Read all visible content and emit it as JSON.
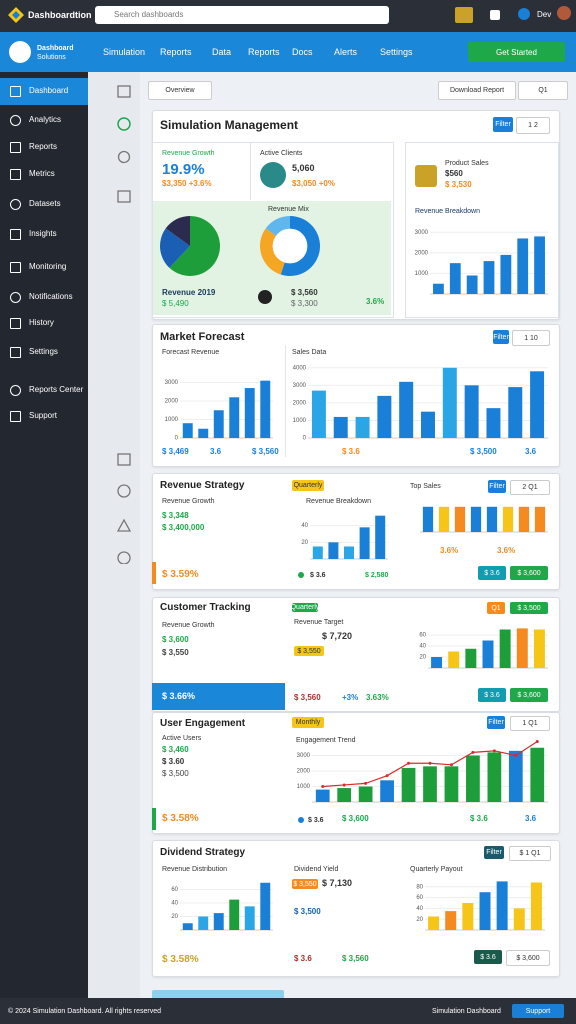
{
  "topbar": {
    "brand": "Dashboardtion",
    "search": "Search dashboards",
    "user": "Dev"
  },
  "header": {
    "app_name": "Dashboard",
    "app_sub": "Solutions",
    "nav": [
      "Simulation",
      "Reports",
      "Data",
      "Reports",
      "Docs",
      "Alerts",
      "Settings"
    ],
    "button": "Get Started"
  },
  "sidebar": [
    "Dashboard",
    "Analytics",
    "Reports",
    "Metrics",
    "Datasets",
    "Insights",
    "Monitoring",
    "Notifications",
    "History",
    "Settings",
    "Reports Center",
    "Support"
  ],
  "toolbar": {
    "filter": "Overview",
    "export": "Download Report",
    "range": "Q1"
  },
  "summary": {
    "title": "Simulation Management",
    "filter": "Filter",
    "pages": "1 2",
    "growth_label": "Revenue Growth",
    "growth": "19.9%",
    "growth_sub": "$3,350 +3.6%",
    "clients_label": "Active Clients",
    "clients": "5,060",
    "clients_sub": "$3,050 +0%",
    "mix_label": "Revenue Mix",
    "mix_legend": "Revenue 2019",
    "mix_value": "$ 5,490",
    "mix_total": "$ 3,560",
    "mix_sub": "$ 3,300",
    "mix_pct": "3.6%",
    "sales_label": "Product Sales",
    "sales": "$560",
    "sales_sub": "$ 3,530",
    "breakdown": "Revenue Breakdown"
  },
  "forecast": {
    "title": "Market Forecast",
    "left_subtitle": "Forecast Revenue",
    "right_subtitle": "Sales Data",
    "filter": "Filter",
    "pages": "1 10",
    "footer": [
      "$ 3,469",
      "3.6",
      "$ 3,560",
      "$ 3.6",
      "$ 3,500",
      "3.6"
    ]
  },
  "strategy": {
    "title": "Revenue Strategy",
    "label": "Revenue Growth",
    "value": "$ 3,348",
    "value_sub": "$ 3,400,000",
    "bottom": "$ 3.59%",
    "tag": "Quarterly",
    "chart_label": "Revenue Breakdown",
    "chart_footer": [
      "$ 3.6",
      "$ 2,580"
    ],
    "right_label": "Top Sales",
    "filter": "Filter",
    "pages": "2 Q1",
    "right_footer": [
      "3.6%",
      "3.6%"
    ],
    "btn_a": "$ 3.6",
    "btn_b": "$ 3,600"
  },
  "tracking": {
    "title": "Customer Tracking",
    "label": "Revenue Growth",
    "value": "$ 3,600",
    "value_sub": "$ 3,550",
    "tag": "Quarterly",
    "mid_label": "Revenue Target",
    "mid_value": "$ 7,720",
    "mid_tag": "$ 3,550",
    "bottom": "$ 3.66%",
    "mid_footer": [
      "$ 3,560",
      "+3%",
      "3.63%"
    ],
    "tag_a": "Q1",
    "tag_b": "$ 3,500",
    "btn_a": "$ 3.6",
    "btn_b": "$ 3,600"
  },
  "engagement": {
    "title": "User Engagement",
    "label": "Active Users",
    "value": "$ 3,460",
    "value_sub": "$ 3.60",
    "value_sub2": "$ 3,500",
    "bottom": "$ 3.58%",
    "tag": "Monthly",
    "chart_label": "Engagement Trend",
    "footer": [
      "$ 3.6",
      "$ 3,600",
      "$ 3.6",
      "3.6"
    ],
    "filter": "Filter",
    "pages": "1 Q1"
  },
  "dividend": {
    "title": "Dividend Strategy",
    "label": "Revenue Distribution",
    "tag": "$ 3,550",
    "value": "$ 7,130",
    "value_sub": "$ 3,500",
    "mid_label": "Dividend Yield",
    "bottom": "$ 3.58%",
    "mid_footer": [
      "$ 3.6",
      "$ 3,560"
    ],
    "right_label": "Quarterly Payout",
    "filter": "Filter",
    "pages": "$ 1 Q1",
    "btn_a": "$ 3.6",
    "btn_b": "$ 3,600"
  },
  "footer": {
    "left": "© 2024 Simulation Dashboard. All rights reserved",
    "right": "Simulation Dashboard",
    "button": "Support"
  },
  "chart_data": [
    {
      "type": "pie",
      "values": [
        62,
        23,
        15
      ],
      "colors": [
        "#1e9e3a",
        "#1b5fb4",
        "#2b2b4f"
      ]
    },
    {
      "type": "pie",
      "donut": true,
      "values": [
        55,
        30,
        15
      ],
      "colors": [
        "#1a7fd6",
        "#f5a623",
        "#5fb7ee"
      ]
    },
    {
      "type": "bar",
      "values": [
        500,
        1500,
        900,
        1600,
        1900,
        2700,
        2800
      ],
      "color": "#1a7fd6",
      "ylim": [
        0,
        3500
      ],
      "yticks": [
        1000,
        2000,
        3000
      ]
    },
    {
      "type": "bar",
      "values": [
        800,
        500,
        1500,
        2200,
        2700,
        3100
      ],
      "color": "#1a7fd6",
      "ylim": [
        0,
        4000
      ],
      "yticks": [
        0,
        1000,
        2000,
        3000
      ]
    },
    {
      "type": "bar",
      "values": [
        2700,
        1200,
        1200,
        2400,
        3200,
        1500,
        4000,
        3000,
        1700,
        2900,
        3800
      ],
      "colors": [
        "#2aa6e6",
        "#1a7fd6",
        "#2aa6e6",
        "#1a7fd6",
        "#1a7fd6",
        "#1a7fd6",
        "#2aa6e6",
        "#1a7fd6",
        "#1a7fd6",
        "#1a7fd6",
        "#1a7fd6"
      ],
      "ylim": [
        0,
        4500
      ],
      "yticks": [
        0,
        1000,
        2000,
        3000,
        4000
      ]
    },
    {
      "type": "bar",
      "values": [
        15,
        20,
        15,
        38,
        52
      ],
      "colors": [
        "#2aa6e6",
        "#1a7fd6",
        "#2aa6e6",
        "#1a7fd6",
        "#1a7fd6"
      ],
      "ylim": [
        0,
        60
      ],
      "yticks": [
        20,
        40
      ]
    },
    {
      "type": "bar",
      "values": [
        45,
        45,
        45,
        45,
        45,
        45,
        45,
        45
      ],
      "colors": [
        "#1a7fd6",
        "#f5c518",
        "#f58a1f",
        "#1a7fd6",
        "#1a7fd6",
        "#f5c518",
        "#f58a1f",
        "#f58a1f"
      ],
      "ylim": [
        0,
        50
      ]
    },
    {
      "type": "bar",
      "values": [
        20,
        30,
        35,
        50,
        70,
        72,
        70
      ],
      "colors": [
        "#1a7fd6",
        "#f5c518",
        "#1e9e3a",
        "#1a7fd6",
        "#1e9e3a",
        "#f58a1f",
        "#f5c518"
      ],
      "ylim": [
        0,
        80
      ],
      "yticks": [
        20,
        40,
        60
      ]
    },
    {
      "type": "combo",
      "values": [
        800,
        900,
        1000,
        1400,
        2200,
        2300,
        2300,
        3000,
        3200,
        3300,
        3500
      ],
      "colors": [
        "#1a7fd6",
        "#1e9e3a",
        "#1e9e3a",
        "#1a7fd6",
        "#1e9e3a",
        "#1e9e3a",
        "#1e9e3a",
        "#1e9e3a",
        "#1e9e3a",
        "#1a7fd6",
        "#1e9e3a"
      ],
      "line_values": [
        1000,
        1100,
        1200,
        1700,
        2500,
        2500,
        2400,
        3200,
        3300,
        3000,
        3900
      ],
      "line_color": "#d62d2d",
      "ylim": [
        0,
        4000
      ],
      "yticks": [
        1000,
        2000,
        3000
      ]
    },
    {
      "type": "bar",
      "values": [
        10,
        20,
        25,
        45,
        35,
        70
      ],
      "colors": [
        "#1a7fd6",
        "#2aa6e6",
        "#1a7fd6",
        "#1e9e3a",
        "#2aa6e6",
        "#1a7fd6"
      ],
      "ylim": [
        0,
        80
      ],
      "yticks": [
        20,
        40,
        60
      ]
    },
    {
      "type": "bar",
      "values": [
        25,
        35,
        50,
        70,
        90,
        40,
        88
      ],
      "colors": [
        "#f5c518",
        "#f58a1f",
        "#f5c518",
        "#1a7fd6",
        "#1a7fd6",
        "#f5c518",
        "#f5c518"
      ],
      "ylim": [
        0,
        100
      ],
      "yticks": [
        20,
        40,
        60,
        80
      ]
    }
  ]
}
